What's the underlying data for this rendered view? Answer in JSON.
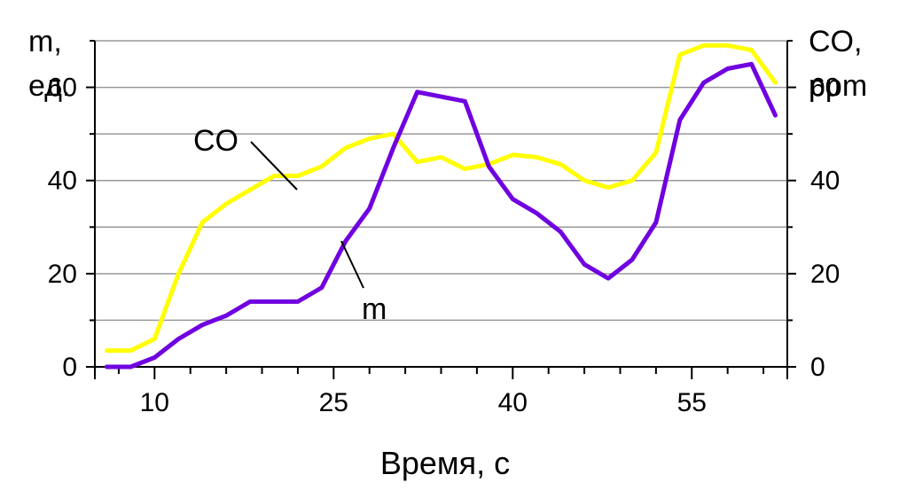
{
  "chart_data": {
    "type": "line",
    "xlabel": "Время, с",
    "ylabel_left": [
      "m,",
      "ед."
    ],
    "ylabel_right": [
      "CO,",
      "ppm"
    ],
    "ylim": [
      0,
      70
    ],
    "xlim": [
      5,
      63
    ],
    "x_ticks": [
      10,
      25,
      40,
      55
    ],
    "y_ticks": [
      0,
      20,
      40,
      60
    ],
    "gridlines": [
      10,
      20,
      30,
      40,
      50,
      60,
      70
    ],
    "grid": true,
    "series": [
      {
        "name": "CO",
        "color": "#ffff00",
        "x": [
          6,
          8,
          10,
          12,
          14,
          16,
          18,
          20,
          22,
          24,
          26,
          28,
          30,
          32,
          34,
          36,
          38,
          40,
          42,
          44,
          46,
          48,
          50,
          52,
          54,
          56,
          58,
          60,
          62
        ],
        "y": [
          3.5,
          3.5,
          6,
          20,
          31,
          35,
          38,
          41,
          41,
          43,
          47,
          49,
          50,
          44,
          45,
          42.5,
          43.5,
          45.5,
          45,
          43.5,
          40,
          38.5,
          40,
          46,
          67,
          69,
          69,
          68,
          61
        ]
      },
      {
        "name": "m",
        "color": "#7000e0",
        "x": [
          6,
          8,
          10,
          12,
          14,
          16,
          18,
          20,
          22,
          24,
          26,
          28,
          30,
          32,
          34,
          36,
          38,
          40,
          42,
          44,
          46,
          48,
          50,
          52,
          54,
          56,
          58,
          60,
          62
        ],
        "y": [
          0,
          0,
          2,
          6,
          9,
          11,
          14,
          14,
          14,
          17,
          27,
          34,
          47,
          59,
          58,
          57,
          43,
          36,
          33,
          29,
          22,
          19,
          23,
          31,
          53,
          61,
          64,
          65,
          54
        ]
      }
    ],
    "annotations": [
      {
        "text": "CO",
        "series": "CO"
      },
      {
        "text": "m",
        "series": "m"
      }
    ]
  },
  "colors": {
    "grid": "#999999",
    "axis": "#000000",
    "label_leader": "#000000"
  }
}
